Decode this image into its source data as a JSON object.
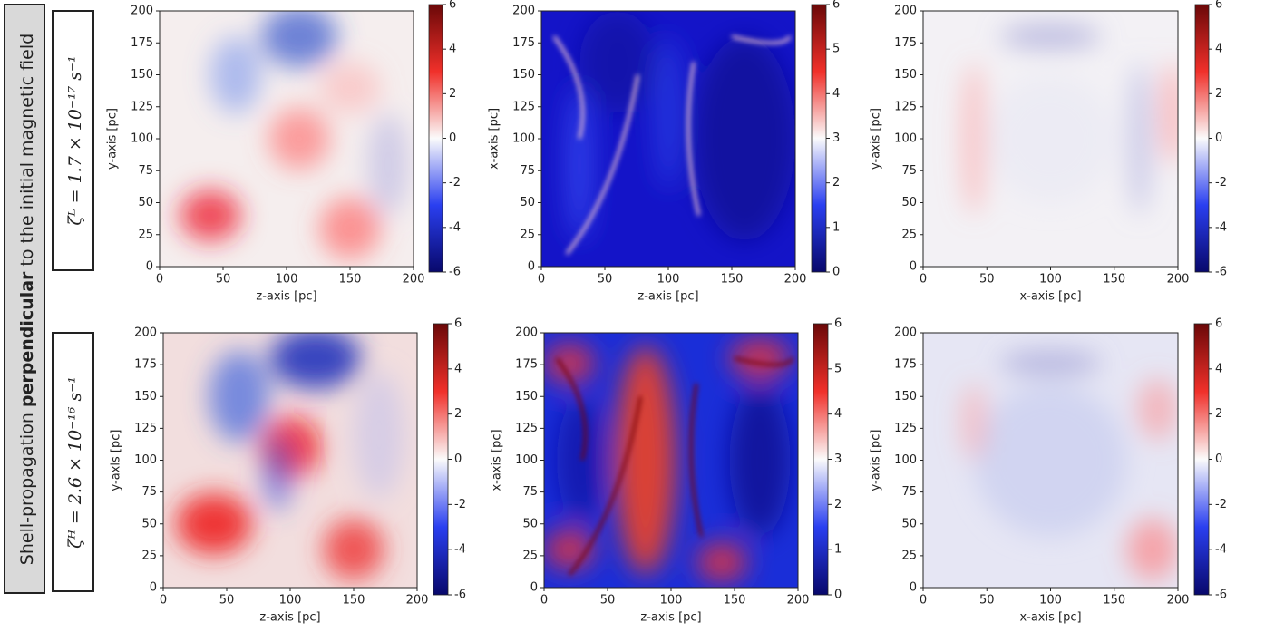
{
  "side_label": {
    "before": "Shell-propagation ",
    "bold": "perpendicular",
    "after": " to the initial magnetic field"
  },
  "row_labels": [
    "ζᴸ = 1.7 × 10⁻¹⁷ s⁻¹",
    "ζᴴ = 2.6 × 10⁻¹⁶ s⁻¹"
  ],
  "chart_data": [
    {
      "type": "heatmap",
      "xlabel": "z-axis [pc]",
      "ylabel": "y-axis [pc]",
      "xlim": [
        0,
        200
      ],
      "ylim": [
        0,
        200
      ],
      "xticks": [
        0,
        50,
        100,
        150,
        200
      ],
      "yticks": [
        0,
        25,
        50,
        75,
        100,
        125,
        150,
        175,
        200
      ],
      "colorbar": {
        "lim": [
          -6,
          6
        ],
        "ticks": [
          -6,
          -4,
          -2,
          0,
          2,
          4,
          6
        ]
      }
    },
    {
      "type": "heatmap",
      "xlabel": "z-axis [pc]",
      "ylabel": "x-axis [pc]",
      "xlim": [
        0,
        200
      ],
      "ylim": [
        0,
        200
      ],
      "xticks": [
        0,
        50,
        100,
        150,
        200
      ],
      "yticks": [
        0,
        25,
        50,
        75,
        100,
        125,
        150,
        175,
        200
      ],
      "colorbar": {
        "lim": [
          0,
          6
        ],
        "ticks": [
          0,
          1,
          2,
          3,
          4,
          5,
          6
        ]
      }
    },
    {
      "type": "heatmap",
      "xlabel": "x-axis [pc]",
      "ylabel": "y-axis [pc]",
      "xlim": [
        0,
        200
      ],
      "ylim": [
        0,
        200
      ],
      "xticks": [
        0,
        50,
        100,
        150,
        200
      ],
      "yticks": [
        0,
        25,
        50,
        75,
        100,
        125,
        150,
        175,
        200
      ],
      "colorbar": {
        "lim": [
          -6,
          6
        ],
        "ticks": [
          -6,
          -4,
          -2,
          0,
          2,
          4,
          6
        ]
      }
    },
    {
      "type": "heatmap",
      "xlabel": "z-axis [pc]",
      "ylabel": "y-axis [pc]",
      "xlim": [
        0,
        200
      ],
      "ylim": [
        0,
        200
      ],
      "xticks": [
        0,
        50,
        100,
        150,
        200
      ],
      "yticks": [
        0,
        25,
        50,
        75,
        100,
        125,
        150,
        175,
        200
      ],
      "colorbar": {
        "lim": [
          -6,
          6
        ],
        "ticks": [
          -6,
          -4,
          -2,
          0,
          2,
          4,
          6
        ]
      }
    },
    {
      "type": "heatmap",
      "xlabel": "z-axis [pc]",
      "ylabel": "x-axis [pc]",
      "xlim": [
        0,
        200
      ],
      "ylim": [
        0,
        200
      ],
      "xticks": [
        0,
        50,
        100,
        150,
        200
      ],
      "yticks": [
        0,
        25,
        50,
        75,
        100,
        125,
        150,
        175,
        200
      ],
      "colorbar": {
        "lim": [
          0,
          6
        ],
        "ticks": [
          0,
          1,
          2,
          3,
          4,
          5,
          6
        ]
      }
    },
    {
      "type": "heatmap",
      "xlabel": "x-axis [pc]",
      "ylabel": "y-axis [pc]",
      "xlim": [
        0,
        200
      ],
      "ylim": [
        0,
        200
      ],
      "xticks": [
        0,
        50,
        100,
        150,
        200
      ],
      "yticks": [
        0,
        25,
        50,
        75,
        100,
        125,
        150,
        175,
        200
      ],
      "colorbar": {
        "lim": [
          -6,
          6
        ],
        "ticks": [
          -6,
          -4,
          -2,
          0,
          2,
          4,
          6
        ]
      }
    }
  ]
}
